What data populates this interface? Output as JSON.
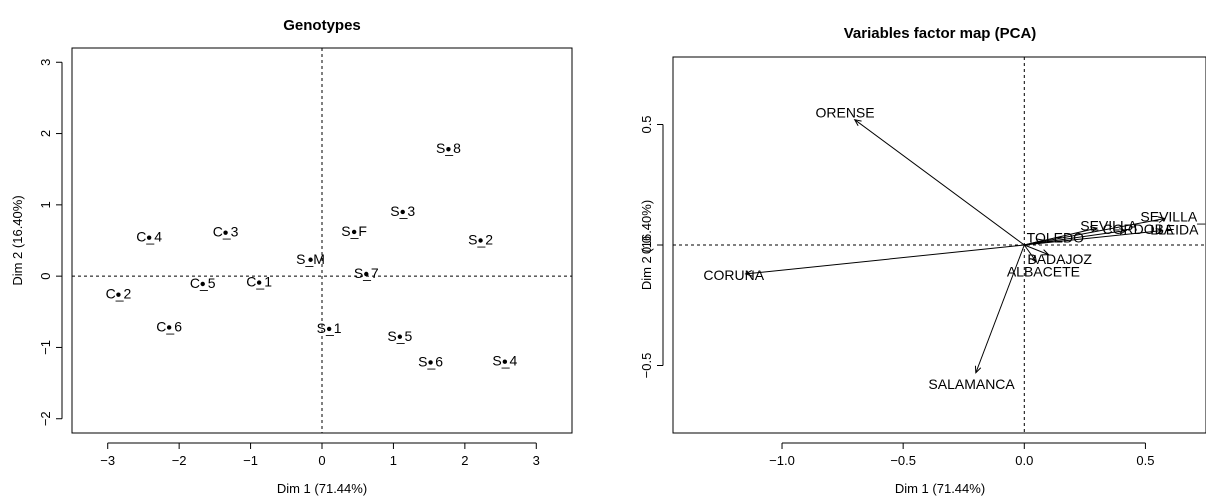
{
  "chart_data": [
    {
      "type": "scatter",
      "title": "Genotypes",
      "xlabel": "Dim 1 (71.44%)",
      "ylabel": "Dim 2 (16.40%)",
      "xlim": [
        -3.5,
        3.5
      ],
      "ylim": [
        -2.2,
        3.2
      ],
      "xticks": [
        -3,
        -2,
        -1,
        0,
        1,
        2,
        3
      ],
      "yticks": [
        -2,
        -1,
        0,
        1,
        2,
        3
      ],
      "xtick_labels": [
        "−3",
        "−2",
        "−1",
        "0",
        "1",
        "2",
        "3"
      ],
      "ytick_labels": [
        "−2",
        "−1",
        "0",
        "1",
        "2",
        "3"
      ],
      "reference_lines": {
        "x": 0,
        "y": 0
      },
      "points": [
        {
          "label": "C_1",
          "x": -0.88,
          "y": -0.09
        },
        {
          "label": "C_2",
          "x": -2.85,
          "y": -0.26
        },
        {
          "label": "C_3",
          "x": -1.35,
          "y": 0.61
        },
        {
          "label": "C_4",
          "x": -2.42,
          "y": 0.54
        },
        {
          "label": "C_5",
          "x": -1.67,
          "y": -0.11
        },
        {
          "label": "C_6",
          "x": -2.14,
          "y": -0.72
        },
        {
          "label": "S_1",
          "x": 0.1,
          "y": -0.74
        },
        {
          "label": "S_2",
          "x": 2.22,
          "y": 0.5
        },
        {
          "label": "S_3",
          "x": 1.13,
          "y": 0.9
        },
        {
          "label": "S_4",
          "x": 2.56,
          "y": -1.2
        },
        {
          "label": "S_5",
          "x": 1.09,
          "y": -0.85
        },
        {
          "label": "S_6",
          "x": 1.52,
          "y": -1.21
        },
        {
          "label": "S_7",
          "x": 0.62,
          "y": 0.03
        },
        {
          "label": "S_8",
          "x": 1.77,
          "y": 1.78
        },
        {
          "label": "S_F",
          "x": 0.45,
          "y": 0.62
        },
        {
          "label": "S_M",
          "x": -0.16,
          "y": 0.23
        }
      ]
    },
    {
      "type": "scatter",
      "title": "Variables factor map (PCA)",
      "xlabel": "Dim 1 (71.44%)",
      "ylabel": "Dim 2 (16.40%)",
      "xlim": [
        -1.45,
        0.75
      ],
      "ylim": [
        -0.78,
        0.78
      ],
      "xticks": [
        -1.0,
        -0.5,
        0.0,
        0.5
      ],
      "yticks": [
        -0.5,
        0.0,
        0.5
      ],
      "xtick_labels": [
        "−1.0",
        "−0.5",
        "0.0",
        "0.5"
      ],
      "ytick_labels": [
        "−0.5",
        "0.0",
        "0.5"
      ],
      "reference_lines": {
        "x": 0,
        "y": 0
      },
      "arrows": [
        {
          "label": "ORENSE",
          "x": -0.7,
          "y": 0.52
        },
        {
          "label": "CORUNA",
          "x": -1.15,
          "y": -0.12
        },
        {
          "label": "SALAMANCA",
          "x": -0.2,
          "y": -0.53
        },
        {
          "label": "SEVILLA",
          "x": 0.3,
          "y": 0.07
        },
        {
          "label": "SEVILLA_2",
          "x": 0.58,
          "y": 0.11
        },
        {
          "label": "CORDOBA",
          "x": 0.42,
          "y": 0.06
        },
        {
          "label": "LLEIDA",
          "x": 0.57,
          "y": 0.06
        },
        {
          "label": "TOLEDO",
          "x": 0.08,
          "y": 0.02
        },
        {
          "label": "BADAJOZ",
          "x": 0.1,
          "y": -0.04
        },
        {
          "label": "ALBACETE",
          "x": 0.05,
          "y": -0.07
        }
      ]
    }
  ]
}
